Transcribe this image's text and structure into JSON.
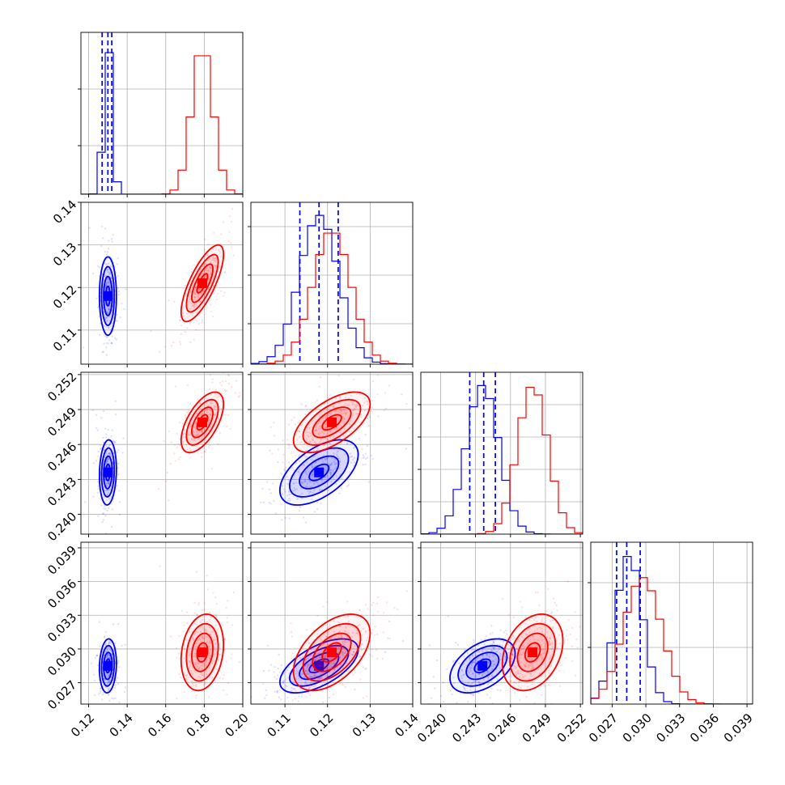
{
  "chart_data": {
    "type": "corner",
    "series": [
      {
        "color": "#0000ff",
        "mean": [
          0.13,
          0.118,
          0.2436,
          0.0285
        ],
        "std": [
          0.0022,
          0.0046,
          0.0014,
          0.0012
        ],
        "corr": [
          [
            1,
            0,
            0.1,
            0.1
          ],
          [
            0,
            1,
            0.55,
            0.6
          ],
          [
            0.1,
            0.55,
            1,
            0.45
          ],
          [
            0.1,
            0.6,
            0.45,
            1
          ]
        ],
        "quantiles": [
          [
            0.127,
            0.13,
            0.132
          ],
          [
            0.1135,
            0.118,
            0.1225
          ],
          [
            0.2425,
            0.2437,
            0.2447
          ],
          [
            0.0274,
            0.0283,
            0.0295
          ]
        ],
        "hist_peak": [
          1.0,
          1.0,
          1.0,
          1.0
        ]
      },
      {
        "color": "#ff0000",
        "mean": [
          0.179,
          0.121,
          0.2479,
          0.0297
        ],
        "std": [
          0.0055,
          0.0045,
          0.0013,
          0.0017
        ],
        "corr": [
          [
            1,
            0.75,
            0.6,
            0.2
          ],
          [
            0.75,
            1,
            0.6,
            0.5
          ],
          [
            0.6,
            0.6,
            1,
            0.3
          ],
          [
            0.2,
            0.5,
            0.3,
            1
          ]
        ],
        "hist_peak": [
          1.0,
          0.9,
          1.0,
          0.85
        ]
      }
    ],
    "ranges": [
      [
        0.116,
        0.2
      ],
      [
        0.102,
        0.14
      ],
      [
        0.2383,
        0.2522
      ],
      [
        0.0251,
        0.0395
      ]
    ],
    "ticks": [
      [
        "0.12",
        "0.14",
        "0.16",
        "0.18",
        "0.20"
      ],
      [
        "0.11",
        "0.12",
        "0.13",
        "0.14"
      ],
      [
        "0.240",
        "0.243",
        "0.246",
        "0.249",
        "0.252"
      ],
      [
        "0.027",
        "0.030",
        "0.033",
        "0.036",
        "0.039"
      ]
    ],
    "hist_yticks": [
      [
        0.3,
        0.65
      ],
      [
        0.25,
        0.55,
        0.85
      ],
      [
        0.2,
        0.4,
        0.6,
        0.8
      ],
      [
        0.35,
        0.75
      ]
    ],
    "grid": true
  }
}
